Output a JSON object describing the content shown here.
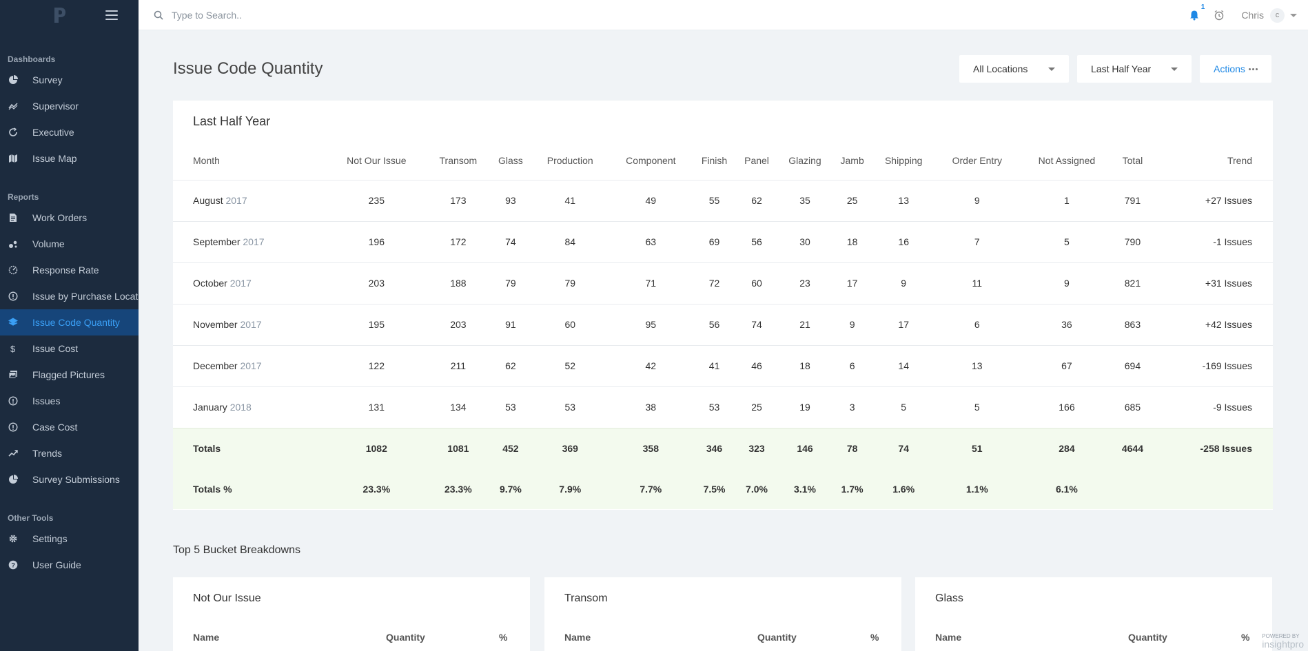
{
  "sidebar": {
    "sections": [
      {
        "label": "Dashboards",
        "items": [
          {
            "label": "Survey",
            "icon": "pie-chart-icon"
          },
          {
            "label": "Supervisor",
            "icon": "trend-icon"
          },
          {
            "label": "Executive",
            "icon": "refresh-icon"
          },
          {
            "label": "Issue Map",
            "icon": "map-icon"
          }
        ]
      },
      {
        "label": "Reports",
        "items": [
          {
            "label": "Work Orders",
            "icon": "document-icon"
          },
          {
            "label": "Volume",
            "icon": "scatter-icon"
          },
          {
            "label": "Response Rate",
            "icon": "gauge-icon"
          },
          {
            "label": "Issue by Purchase Location",
            "icon": "info-circle-icon"
          },
          {
            "label": "Issue Code Quantity",
            "icon": "layers-icon",
            "active": true
          },
          {
            "label": "Issue Cost",
            "icon": "dollar-icon"
          },
          {
            "label": "Flagged Pictures",
            "icon": "images-icon"
          },
          {
            "label": "Issues",
            "icon": "info-circle-icon"
          },
          {
            "label": "Case Cost",
            "icon": "info-circle-icon"
          },
          {
            "label": "Trends",
            "icon": "trending-up-icon"
          },
          {
            "label": "Survey Submissions",
            "icon": "pie-chart-icon"
          }
        ]
      },
      {
        "label": "Other Tools",
        "items": [
          {
            "label": "Settings",
            "icon": "gear-icon"
          },
          {
            "label": "User Guide",
            "icon": "help-icon"
          }
        ]
      }
    ]
  },
  "topbar": {
    "search_placeholder": "Type to Search..",
    "notification_count": "1",
    "user_name": "Chris",
    "avatar_initial": "c"
  },
  "page": {
    "title": "Issue Code Quantity",
    "location_filter": "All Locations",
    "period_filter": "Last Half Year",
    "actions_label": "Actions"
  },
  "table": {
    "title": "Last Half Year",
    "columns": [
      "Month",
      "Not Our Issue",
      "Transom",
      "Glass",
      "Production",
      "Component",
      "Finish",
      "Panel",
      "Glazing",
      "Jamb",
      "Shipping",
      "Order Entry",
      "Not Assigned",
      "Total",
      "Trend"
    ],
    "rows": [
      {
        "month": "August",
        "year": "2017",
        "values": [
          "235",
          "173",
          "93",
          "41",
          "49",
          "55",
          "62",
          "35",
          "25",
          "13",
          "9",
          "1",
          "791"
        ],
        "trend": "+27 Issues",
        "trend_dir": "pos"
      },
      {
        "month": "September",
        "year": "2017",
        "values": [
          "196",
          "172",
          "74",
          "84",
          "63",
          "69",
          "56",
          "30",
          "18",
          "16",
          "7",
          "5",
          "790"
        ],
        "trend": "-1 Issues",
        "trend_dir": "neg"
      },
      {
        "month": "October",
        "year": "2017",
        "values": [
          "203",
          "188",
          "79",
          "79",
          "71",
          "72",
          "60",
          "23",
          "17",
          "9",
          "11",
          "9",
          "821"
        ],
        "trend": "+31 Issues",
        "trend_dir": "pos"
      },
      {
        "month": "November",
        "year": "2017",
        "values": [
          "195",
          "203",
          "91",
          "60",
          "95",
          "56",
          "74",
          "21",
          "9",
          "17",
          "6",
          "36",
          "863"
        ],
        "trend": "+42 Issues",
        "trend_dir": "pos"
      },
      {
        "month": "December",
        "year": "2017",
        "values": [
          "122",
          "211",
          "62",
          "52",
          "42",
          "41",
          "46",
          "18",
          "6",
          "14",
          "13",
          "67",
          "694"
        ],
        "trend": "-169 Issues",
        "trend_dir": "neg"
      },
      {
        "month": "January",
        "year": "2018",
        "values": [
          "131",
          "134",
          "53",
          "53",
          "38",
          "53",
          "25",
          "19",
          "3",
          "5",
          "5",
          "166",
          "685"
        ],
        "trend": "-9 Issues",
        "trend_dir": "neg"
      }
    ],
    "totals": {
      "label": "Totals",
      "values": [
        "1082",
        "1081",
        "452",
        "369",
        "358",
        "346",
        "323",
        "146",
        "78",
        "74",
        "51",
        "284",
        "4644"
      ],
      "trend": "-258 Issues"
    },
    "totals_pct": {
      "label": "Totals %",
      "values": [
        "23.3%",
        "23.3%",
        "9.7%",
        "7.9%",
        "7.7%",
        "7.5%",
        "7.0%",
        "3.1%",
        "1.7%",
        "1.6%",
        "1.1%",
        "6.1%",
        ""
      ]
    }
  },
  "buckets": {
    "section_title": "Top 5 Bucket Breakdowns",
    "headers": {
      "name": "Name",
      "quantity": "Quantity",
      "percent": "%"
    },
    "cards": [
      {
        "title": "Not Our Issue"
      },
      {
        "title": "Transom"
      },
      {
        "title": "Glass"
      }
    ]
  },
  "footer": {
    "powered_by": "POWERED BY",
    "brand": "insightpro"
  },
  "colors": {
    "sidebar_bg": "#1c2b3e",
    "active_bg": "#16457a",
    "accent": "#1e88e5",
    "trend_up": "#e53935",
    "trend_down": "#6cbf3f"
  }
}
